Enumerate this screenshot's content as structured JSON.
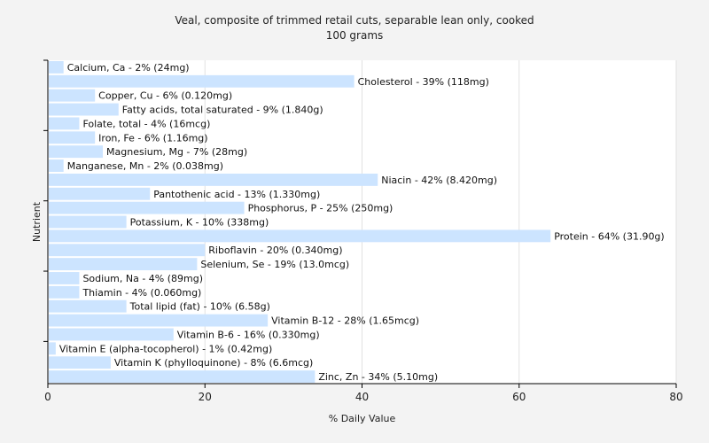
{
  "chart_data": {
    "type": "bar",
    "orientation": "horizontal",
    "title": "Veal, composite of trimmed retail cuts, separable lean only, cooked",
    "subtitle": "100 grams",
    "xlabel": "% Daily Value",
    "ylabel": "Nutrient",
    "xlim": [
      0,
      80
    ],
    "xticks": [
      0,
      20,
      40,
      60,
      80
    ],
    "grid": true,
    "bar_color": "#cce4ff",
    "categories": [
      "Calcium, Ca - 2% (24mg)",
      "Cholesterol - 39% (118mg)",
      "Copper, Cu - 6% (0.120mg)",
      "Fatty acids, total saturated - 9% (1.840g)",
      "Folate, total - 4% (16mcg)",
      "Iron, Fe - 6% (1.16mg)",
      "Magnesium, Mg - 7% (28mg)",
      "Manganese, Mn - 2% (0.038mg)",
      "Niacin - 42% (8.420mg)",
      "Pantothenic acid - 13% (1.330mg)",
      "Phosphorus, P - 25% (250mg)",
      "Potassium, K - 10% (338mg)",
      "Protein - 64% (31.90g)",
      "Riboflavin - 20% (0.340mg)",
      "Selenium, Se - 19% (13.0mcg)",
      "Sodium, Na - 4% (89mg)",
      "Thiamin - 4% (0.060mg)",
      "Total lipid (fat) - 10% (6.58g)",
      "Vitamin B-12 - 28% (1.65mcg)",
      "Vitamin B-6 - 16% (0.330mg)",
      "Vitamin E (alpha-tocopherol) - 1% (0.42mg)",
      "Vitamin K (phylloquinone) - 8% (6.6mcg)",
      "Zinc, Zn - 34% (5.10mg)"
    ],
    "values": [
      2,
      39,
      6,
      9,
      4,
      6,
      7,
      2,
      42,
      13,
      25,
      10,
      64,
      20,
      19,
      4,
      4,
      10,
      28,
      16,
      1,
      8,
      34
    ]
  }
}
